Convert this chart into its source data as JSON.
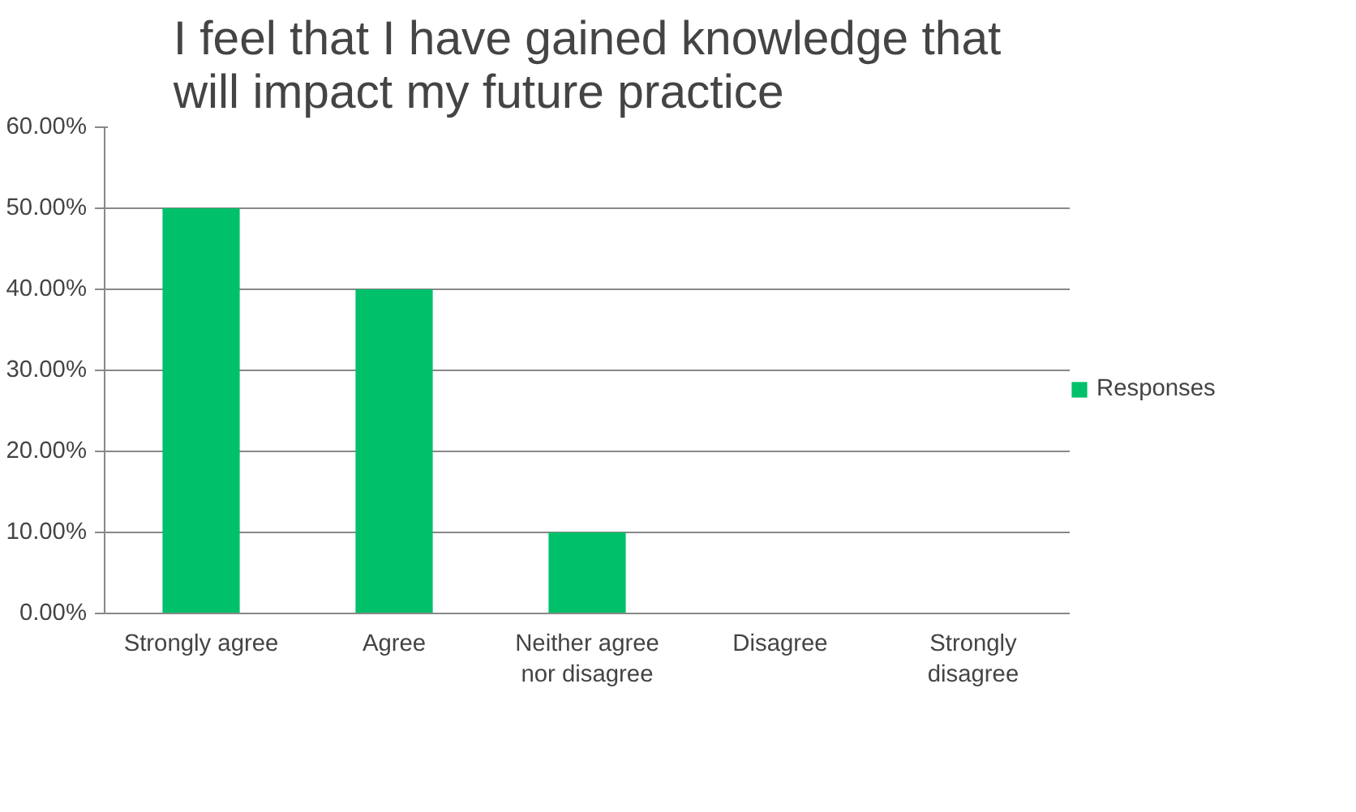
{
  "chart_data": {
    "type": "bar",
    "title": "I feel that I have gained knowledge that\nwill impact my future practice",
    "categories": [
      "Strongly agree",
      "Agree",
      "Neither agree\nnor disagree",
      "Disagree",
      "Strongly\ndisagree"
    ],
    "series": [
      {
        "name": "Responses",
        "color": "#00c06a",
        "values": [
          50,
          40,
          10,
          0,
          0
        ]
      }
    ],
    "ylim": [
      0,
      60
    ],
    "yticks": [
      {
        "value": 0,
        "label": "0.00%"
      },
      {
        "value": 10,
        "label": "10.00%"
      },
      {
        "value": 20,
        "label": "20.00%"
      },
      {
        "value": 30,
        "label": "30.00%"
      },
      {
        "value": 40,
        "label": "40.00%"
      },
      {
        "value": 50,
        "label": "50.00%"
      },
      {
        "value": 60,
        "label": "60.00%"
      }
    ],
    "grid": "y",
    "legend": "right"
  }
}
